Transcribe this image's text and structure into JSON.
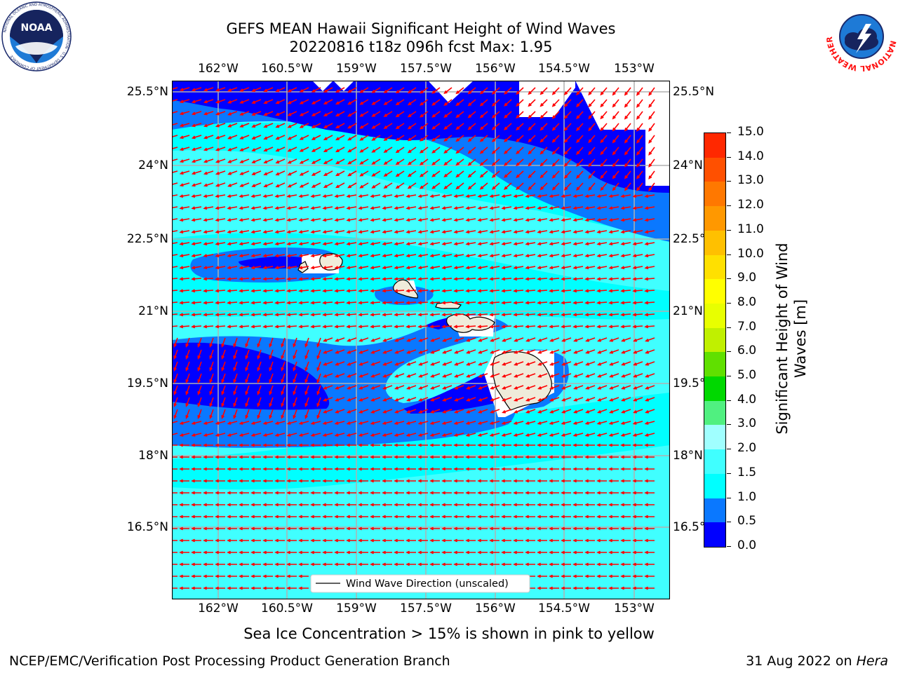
{
  "title": {
    "line1": "GEFS MEAN Hawaii Significant Height of Wind Waves",
    "line2": "20220816 t18z 096h fcst   Max: 1.95"
  },
  "map": {
    "lon_labels": [
      "162°W",
      "160.5°W",
      "159°W",
      "157.5°W",
      "156°W",
      "154.5°W",
      "153°W"
    ],
    "lat_labels": [
      "25.5°N",
      "24°N",
      "22.5°N",
      "21°N",
      "19.5°N",
      "18°N",
      "16.5°N"
    ],
    "land_color": "#efebda",
    "arrow_color": "#ff0000",
    "legend_label": "Wind Wave Direction (unscaled)"
  },
  "colorbar": {
    "label_line1": "Significant Height of Wind",
    "label_line2": "Waves [m]",
    "ticks": [
      "0.0",
      "0.5",
      "1.0",
      "1.5",
      "2.0",
      "3.0",
      "4.0",
      "5.0",
      "6.0",
      "7.0",
      "8.0",
      "9.0",
      "10.0",
      "11.0",
      "12.0",
      "13.0",
      "14.0",
      "15.0"
    ],
    "colors": [
      "#0000ff",
      "#0a78ff",
      "#00ffff",
      "#40ffff",
      "#a0ffff",
      "#50f080",
      "#00d800",
      "#60e000",
      "#c0f000",
      "#e8ff00",
      "#ffff00",
      "#ffe000",
      "#ffc000",
      "#ff9800",
      "#ff7800",
      "#ff5000",
      "#ff2800"
    ]
  },
  "footer": {
    "sea_ice_note": "Sea Ice Concentration > 15% is shown in pink to yellow",
    "producer": "NCEP/EMC/Verification Post Processing Product Generation Branch",
    "date": "31 Aug 2022 on ",
    "machine": "Hera"
  },
  "logos": {
    "noaa_text": "NOAA",
    "noaa_ring": "NATIONAL OCEANIC AND ATMOSPHERIC ADMINISTRATION · U.S. DEPARTMENT OF COMMERCE",
    "nws_ring": "NATIONAL WEATHER SERVICE"
  }
}
